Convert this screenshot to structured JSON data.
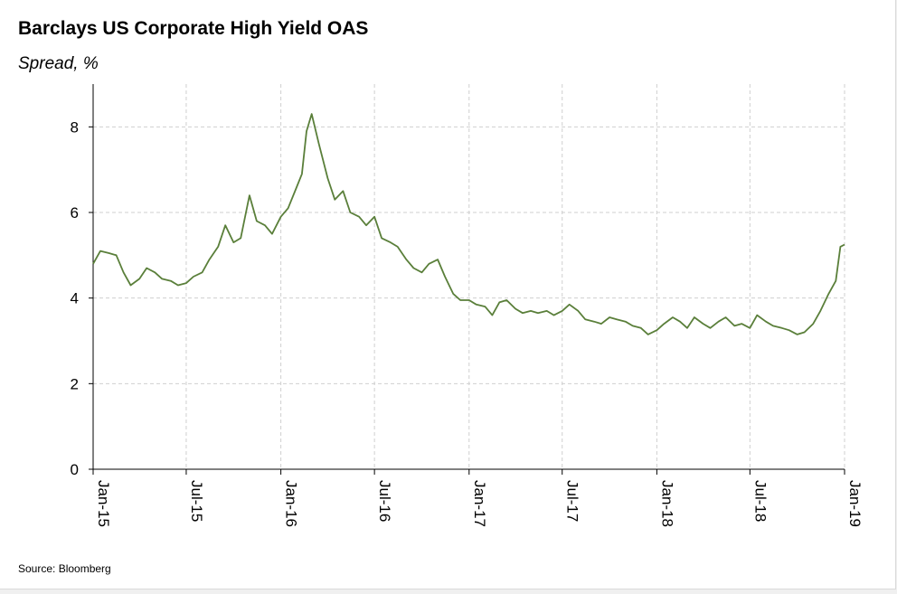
{
  "chart_data": {
    "type": "line",
    "title": "Barclays US Corporate High Yield OAS",
    "subtitle": "Spread, %",
    "source": "Source: Bloomberg",
    "xlabel": "",
    "ylabel": "",
    "ylim": [
      0,
      9
    ],
    "xlim": [
      "2015-01",
      "2019-01"
    ],
    "y_ticks": [
      0,
      2,
      4,
      6,
      8
    ],
    "x_ticks": [
      "Jan-15",
      "Jul-15",
      "Jan-16",
      "Jul-16",
      "Jan-17",
      "Jul-17",
      "Jan-18",
      "Jul-18",
      "Jan-19"
    ],
    "grid": true,
    "line_color": "#5a7f3a",
    "series": [
      {
        "x": [
          "2015-01-01",
          "2015-01-15",
          "2015-02-01",
          "2015-02-15",
          "2015-03-01",
          "2015-03-15",
          "2015-04-01",
          "2015-04-15",
          "2015-05-01",
          "2015-05-15",
          "2015-06-01",
          "2015-06-15",
          "2015-07-01",
          "2015-07-15",
          "2015-08-01",
          "2015-08-15",
          "2015-09-01",
          "2015-09-15",
          "2015-10-01",
          "2015-10-15",
          "2015-11-01",
          "2015-11-15",
          "2015-12-01",
          "2015-12-15",
          "2016-01-01",
          "2016-01-15",
          "2016-02-01",
          "2016-02-11",
          "2016-02-20",
          "2016-03-01",
          "2016-03-15",
          "2016-04-01",
          "2016-04-15",
          "2016-05-01",
          "2016-05-15",
          "2016-06-01",
          "2016-06-15",
          "2016-07-01",
          "2016-07-15",
          "2016-08-01",
          "2016-08-15",
          "2016-09-01",
          "2016-09-15",
          "2016-10-01",
          "2016-10-15",
          "2016-11-01",
          "2016-11-15",
          "2016-12-01",
          "2016-12-15",
          "2017-01-01",
          "2017-01-15",
          "2017-02-01",
          "2017-02-15",
          "2017-03-01",
          "2017-03-15",
          "2017-04-01",
          "2017-04-15",
          "2017-05-01",
          "2017-05-15",
          "2017-06-01",
          "2017-06-15",
          "2017-07-01",
          "2017-07-15",
          "2017-08-01",
          "2017-08-15",
          "2017-09-01",
          "2017-09-15",
          "2017-10-01",
          "2017-10-15",
          "2017-11-01",
          "2017-11-15",
          "2017-12-01",
          "2017-12-15",
          "2018-01-01",
          "2018-01-15",
          "2018-02-01",
          "2018-02-15",
          "2018-03-01",
          "2018-03-15",
          "2018-04-01",
          "2018-04-15",
          "2018-05-01",
          "2018-05-15",
          "2018-06-01",
          "2018-06-15",
          "2018-07-01",
          "2018-07-15",
          "2018-08-01",
          "2018-08-15",
          "2018-09-01",
          "2018-09-15",
          "2018-10-01",
          "2018-10-15",
          "2018-11-01",
          "2018-11-15",
          "2018-12-01",
          "2018-12-15",
          "2018-12-24",
          "2019-01-01"
        ],
        "values": [
          4.8,
          5.1,
          5.05,
          5.0,
          4.6,
          4.3,
          4.45,
          4.7,
          4.6,
          4.45,
          4.4,
          4.3,
          4.35,
          4.5,
          4.6,
          4.9,
          5.2,
          5.7,
          5.3,
          5.4,
          6.4,
          5.8,
          5.7,
          5.5,
          5.9,
          6.1,
          6.6,
          6.9,
          7.9,
          8.3,
          7.6,
          6.8,
          6.3,
          6.5,
          6.0,
          5.9,
          5.7,
          5.9,
          5.4,
          5.3,
          5.2,
          4.9,
          4.7,
          4.6,
          4.8,
          4.9,
          4.5,
          4.1,
          3.95,
          3.95,
          3.85,
          3.8,
          3.6,
          3.9,
          3.95,
          3.75,
          3.65,
          3.7,
          3.65,
          3.7,
          3.6,
          3.7,
          3.85,
          3.7,
          3.5,
          3.45,
          3.4,
          3.55,
          3.5,
          3.45,
          3.35,
          3.3,
          3.15,
          3.25,
          3.4,
          3.55,
          3.45,
          3.3,
          3.55,
          3.4,
          3.3,
          3.45,
          3.55,
          3.35,
          3.4,
          3.3,
          3.6,
          3.45,
          3.35,
          3.3,
          3.25,
          3.15,
          3.2,
          3.4,
          3.7,
          4.1,
          4.4,
          5.2,
          5.25
        ]
      }
    ]
  }
}
